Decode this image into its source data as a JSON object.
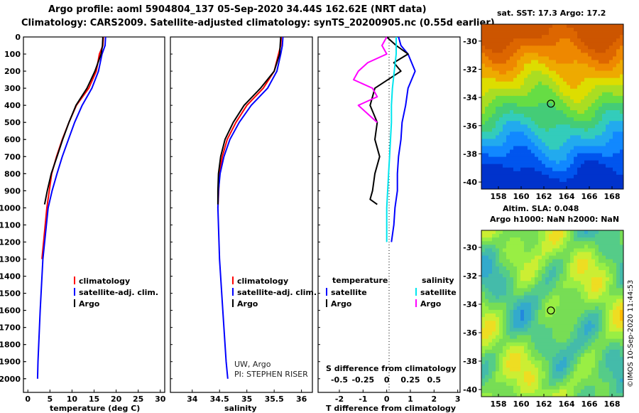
{
  "header": {
    "line1": "Argo profile: aoml 5904804_137 05-Sep-2020 34.44S 162.62E (NRT data)",
    "line2": "Climatology: CARS2009. Satellite-adjusted climatology: synTS_20200905.nc (0.55d earlier)"
  },
  "colors": {
    "climatology": "#ff0000",
    "satellite": "#0000ff",
    "argo": "#000000",
    "sat_salinity": "#00e5ee",
    "argo_salinity": "#ff00ff"
  },
  "depth_axis": {
    "ticks": [
      "0",
      "100",
      "200",
      "300",
      "400",
      "500",
      "600",
      "700",
      "800",
      "900",
      "1000",
      "1100",
      "1200",
      "1300",
      "1400",
      "1500",
      "1600",
      "1700",
      "1800",
      "1900",
      "2000"
    ],
    "range": [
      0,
      2080
    ]
  },
  "chart_data": [
    {
      "type": "line",
      "name": "temperature",
      "xlabel": "temperature (deg C)",
      "ylabel": "depth (m)",
      "xlim": [
        -1,
        31
      ],
      "ylim": [
        2080,
        0
      ],
      "xticks": [
        "0",
        "5",
        "10",
        "15",
        "20",
        "25",
        "30"
      ],
      "legend": {
        "items": [
          "climatology",
          "satellite-adj. clim.",
          "Argo"
        ],
        "placement": "lower-middle"
      },
      "series": [
        {
          "name": "climatology",
          "color": "#ff0000",
          "x": [
            17.1,
            17.0,
            16.2,
            15.5,
            13.8,
            11.0,
            9.3,
            7.8,
            6.5,
            5.4,
            4.3,
            3.2
          ],
          "y": [
            0,
            50,
            100,
            200,
            300,
            400,
            500,
            600,
            700,
            800,
            1000,
            1300
          ]
        },
        {
          "name": "satellite-adj. clim.",
          "color": "#0000ff",
          "x": [
            17.6,
            17.5,
            16.8,
            16.0,
            14.5,
            12.3,
            10.6,
            9.2,
            7.8,
            6.6,
            5.5,
            4.6,
            3.4,
            2.8,
            2.3,
            2.2
          ],
          "y": [
            0,
            50,
            100,
            200,
            300,
            400,
            500,
            600,
            700,
            800,
            900,
            1000,
            1300,
            1600,
            1900,
            2000
          ]
        },
        {
          "name": "Argo",
          "color": "#000000",
          "x": [
            17.0,
            16.9,
            16.6,
            15.2,
            13.4,
            10.9,
            9.3,
            7.9,
            6.6,
            5.3,
            4.4,
            3.8
          ],
          "y": [
            0,
            50,
            100,
            200,
            300,
            400,
            500,
            600,
            700,
            800,
            900,
            980
          ]
        }
      ]
    },
    {
      "type": "line",
      "name": "salinity",
      "xlabel": "salinity",
      "ylabel": "depth (m)",
      "xlim": [
        33.6,
        36.2
      ],
      "ylim": [
        2080,
        0
      ],
      "xticks": [
        "34",
        "34.5",
        "35",
        "35.5",
        "36"
      ],
      "legend": {
        "items": [
          "climatology",
          "satellite-adj. clim.",
          "Argo"
        ],
        "placement": "lower-right"
      },
      "credit": [
        "UW, Argo",
        "PI: STEPHEN RISER"
      ],
      "series": [
        {
          "name": "climatology",
          "color": "#ff0000",
          "x": [
            35.63,
            35.62,
            35.58,
            35.5,
            35.3,
            35.0,
            34.8,
            34.64,
            34.55,
            34.5,
            34.47
          ],
          "y": [
            0,
            50,
            100,
            200,
            300,
            400,
            500,
            600,
            700,
            800,
            1000
          ]
        },
        {
          "name": "satellite-adj. clim.",
          "color": "#0000ff",
          "x": [
            35.66,
            35.65,
            35.62,
            35.55,
            35.38,
            35.08,
            34.86,
            34.69,
            34.58,
            34.51,
            34.48,
            34.47,
            34.5,
            34.56,
            34.62,
            34.65
          ],
          "y": [
            0,
            50,
            100,
            200,
            300,
            400,
            500,
            600,
            700,
            800,
            900,
            1000,
            1300,
            1600,
            1900,
            2000
          ]
        },
        {
          "name": "Argo",
          "color": "#000000",
          "x": [
            35.62,
            35.61,
            35.6,
            35.5,
            35.25,
            34.95,
            34.75,
            34.6,
            34.52,
            34.48,
            34.47,
            34.47
          ],
          "y": [
            0,
            50,
            100,
            200,
            300,
            400,
            500,
            600,
            700,
            800,
            900,
            980
          ]
        }
      ]
    },
    {
      "type": "line",
      "name": "difference",
      "xlabel": "T difference from climatology",
      "top_label": "S difference from climatology",
      "xlim": [
        -2.9,
        3.1
      ],
      "ylim": [
        2080,
        0
      ],
      "xticks": [
        "-2",
        "-1",
        "0",
        "1",
        "2",
        "3"
      ],
      "sticks": [
        "-0.5",
        "-0.25",
        "0",
        "0.25",
        "0.5"
      ],
      "legend": {
        "headers": [
          "temperature",
          "salinity"
        ],
        "items": [
          "satellite",
          "Argo",
          "satellite",
          "Argo"
        ],
        "placement": "lower-middle"
      },
      "series": [
        {
          "name": "T satellite",
          "color": "#0000ff",
          "x": [
            0.5,
            0.6,
            0.9,
            1.2,
            0.9,
            0.8,
            0.65,
            0.6,
            0.5,
            0.45,
            0.45,
            0.35,
            0.3,
            0.2
          ],
          "y": [
            0,
            50,
            100,
            200,
            300,
            400,
            500,
            600,
            700,
            800,
            900,
            1000,
            1100,
            1200
          ]
        },
        {
          "name": "T Argo",
          "color": "#000000",
          "x": [
            0.0,
            0.4,
            0.9,
            0.3,
            0.6,
            -0.5,
            -0.7,
            -0.4,
            -0.5,
            -0.3,
            -0.5,
            -0.6,
            -0.7,
            -0.4
          ],
          "y": [
            0,
            50,
            100,
            150,
            200,
            300,
            400,
            500,
            600,
            700,
            800,
            900,
            950,
            980
          ]
        },
        {
          "name": "S satellite",
          "color": "#00e5ee",
          "x": [
            0.1,
            0.1,
            0.08,
            0.06,
            0.05,
            0.05,
            0.04,
            0.03,
            0.02,
            0.01,
            0.0,
            0.0,
            0.0
          ],
          "y": [
            0,
            100,
            200,
            300,
            400,
            500,
            600,
            700,
            800,
            900,
            1000,
            1100,
            1200
          ]
        },
        {
          "name": "S Argo",
          "color": "#ff00ff",
          "x": [
            0.0,
            -0.05,
            0.0,
            -0.2,
            -0.3,
            -0.35,
            -0.15,
            -0.1,
            -0.3,
            -0.2,
            -0.1
          ],
          "y": [
            0,
            50,
            100,
            150,
            200,
            250,
            300,
            350,
            400,
            450,
            500
          ]
        }
      ]
    },
    {
      "type": "heatmap",
      "name": "sst-map",
      "title": "sat. SST: 17.3 Argo: 17.2",
      "xticks": [
        "158",
        "160",
        "162",
        "164",
        "166",
        "168"
      ],
      "yticks": [
        "-30",
        "-32",
        "-34",
        "-36",
        "-38",
        "-40"
      ],
      "xlim": [
        156.5,
        169
      ],
      "ylim": [
        -40.5,
        -28.8
      ],
      "argo_position": [
        162.62,
        -34.44
      ]
    },
    {
      "type": "heatmap",
      "name": "sla-map",
      "title1": "Altim. SLA: 0.048",
      "title2": "Argo h1000: NaN h2000: NaN",
      "xticks": [
        "158",
        "160",
        "162",
        "164",
        "166",
        "168"
      ],
      "yticks": [
        "-30",
        "-32",
        "-34",
        "-36",
        "-38",
        "-40"
      ],
      "xlim": [
        156.5,
        169
      ],
      "ylim": [
        -40.5,
        -28.8
      ],
      "argo_position": [
        162.62,
        -34.44
      ]
    }
  ],
  "footer": {
    "stamp": "©IMOS 10-Sep-2020 11:44:53"
  }
}
